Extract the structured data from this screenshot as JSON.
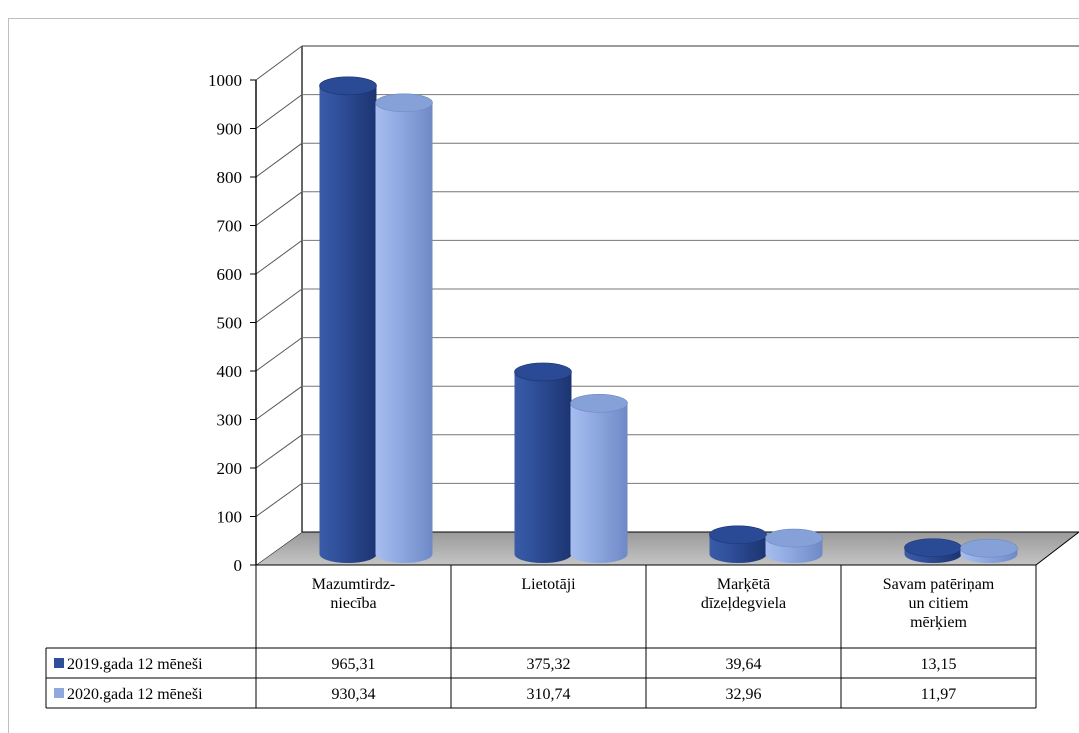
{
  "chart_data": {
    "type": "bar",
    "title": "",
    "categories": [
      [
        "Mazumtirdz-",
        "niecība"
      ],
      [
        "Lietotāji"
      ],
      [
        "Marķētā",
        "dīzeļdegviela"
      ],
      [
        "Savam patēriņam",
        "un citiem",
        "mērķiem"
      ]
    ],
    "series": [
      {
        "name": "2019.gada 12 mēneši",
        "color": "#2f4f9a",
        "values": [
          965.31,
          375.32,
          39.64,
          13.15
        ],
        "labels": [
          "965,31",
          "375,32",
          "39,64",
          "13,15"
        ]
      },
      {
        "name": "2020.gada 12 mēneši",
        "color": "#8fa9e0",
        "values": [
          930.34,
          310.74,
          32.96,
          11.97
        ],
        "labels": [
          "930,34",
          "310,74",
          "32,96",
          "11,97"
        ]
      }
    ],
    "ylim": [
      0,
      1000
    ],
    "yticks": [
      0,
      100,
      200,
      300,
      400,
      500,
      600,
      700,
      800,
      900,
      1000
    ],
    "grid": true,
    "legend": "data-table"
  }
}
